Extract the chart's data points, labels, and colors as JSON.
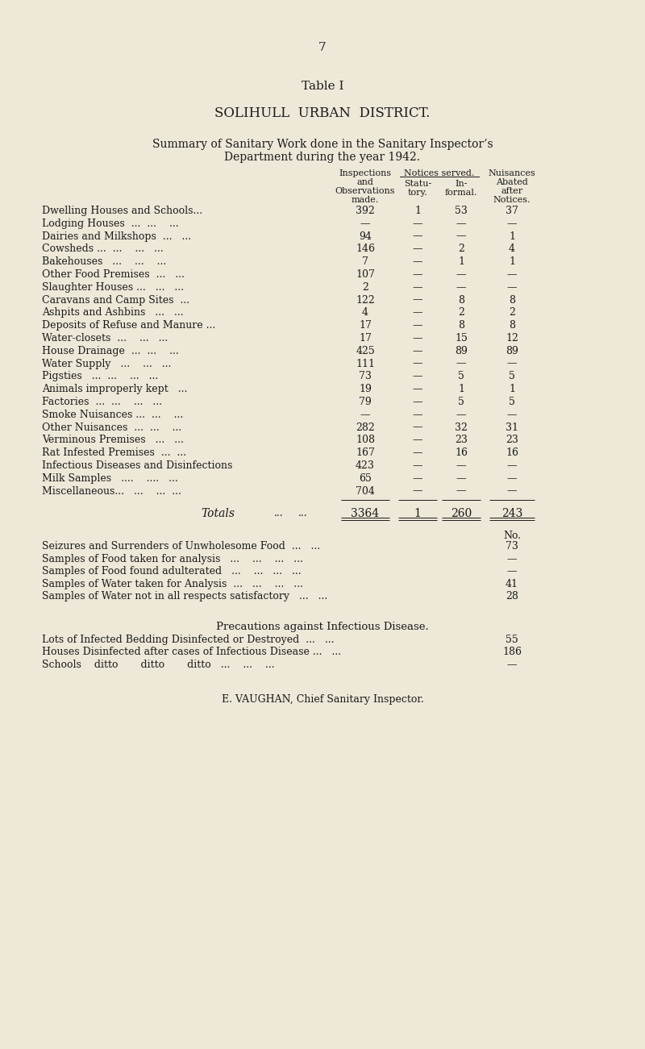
{
  "bg_color": "#ede8d8",
  "text_color": "#1a1a1a",
  "page_number": "7",
  "title1": "Table I",
  "title2": "SOLIHULL  URBAN  DISTRICT.",
  "title3": "Summary of Sanitary Work done in the Sanitary Inspector’s",
  "title4": "Department during the year 1942.",
  "rows": [
    {
      "label": "Dwelling Houses and Schools",
      "ldots": "...",
      "insp": "392",
      "stat": "1",
      "inf": "53",
      "nuis": "37"
    },
    {
      "label": "Lodging Houses  ...",
      "ldots": "  ...    ...",
      "insp": "—",
      "stat": "—",
      "inf": "—",
      "nuis": "—"
    },
    {
      "label": "Dairies and Milkshops",
      "ldots": "  ...   ...",
      "insp": "94",
      "stat": "—",
      "inf": "—",
      "nuis": "1"
    },
    {
      "label": "Cowsheds ...",
      "ldots": "  ...    ...   ...",
      "insp": "146",
      "stat": "—",
      "inf": "2",
      "nuis": "4"
    },
    {
      "label": "Bakehouses",
      "ldots": "   ...    ...    ...",
      "insp": "7",
      "stat": "—",
      "inf": "1",
      "nuis": "1"
    },
    {
      "label": "Other Food Premises",
      "ldots": "  ...   ...",
      "insp": "107",
      "stat": "—",
      "inf": "—",
      "nuis": "—"
    },
    {
      "label": "Slaughter Houses ...",
      "ldots": "   ...   ...",
      "insp": "2",
      "stat": "—",
      "inf": "—",
      "nuis": "—"
    },
    {
      "label": "Caravans and Camp Sites",
      "ldots": "  ...",
      "insp": "122",
      "stat": "—",
      "inf": "8",
      "nuis": "8"
    },
    {
      "label": "Ashpits and Ashbins",
      "ldots": "   ...   ...",
      "insp": "4",
      "stat": "—",
      "inf": "2",
      "nuis": "2"
    },
    {
      "label": "Deposits of Refuse and Manure ...",
      "ldots": "",
      "insp": "17",
      "stat": "—",
      "inf": "8",
      "nuis": "8"
    },
    {
      "label": "Water-closets",
      "ldots": "  ...    ...   ...",
      "insp": "17",
      "stat": "—",
      "inf": "15",
      "nuis": "12"
    },
    {
      "label": "House Drainage  ...",
      "ldots": "  ...    ...",
      "insp": "425",
      "stat": "—",
      "inf": "89",
      "nuis": "89"
    },
    {
      "label": "Water Supply",
      "ldots": "   ...    ...   ...",
      "insp": "111",
      "stat": "—",
      "inf": "—",
      "nuis": "—"
    },
    {
      "label": "Pigsties   ...",
      "ldots": "  ...    ...   ...",
      "insp": "73",
      "stat": "—",
      "inf": "5",
      "nuis": "5"
    },
    {
      "label": "Animals improperly kept",
      "ldots": "   ...",
      "insp": "19",
      "stat": "—",
      "inf": "1",
      "nuis": "1"
    },
    {
      "label": "Factories  ...",
      "ldots": "  ...    ...   ...",
      "insp": "79",
      "stat": "—",
      "inf": "5",
      "nuis": "5"
    },
    {
      "label": "Smoke Nuisances ...",
      "ldots": "  ...    ...",
      "insp": "—",
      "stat": "—",
      "inf": "—",
      "nuis": "—"
    },
    {
      "label": "Other Nuisances  ...",
      "ldots": "  ...    ...",
      "insp": "282",
      "stat": "—",
      "inf": "32",
      "nuis": "31"
    },
    {
      "label": "Verminous Premises",
      "ldots": "   ...   ...",
      "insp": "108",
      "stat": "—",
      "inf": "23",
      "nuis": "23"
    },
    {
      "label": "Rat Infested Premises  ...",
      "ldots": "  ...",
      "insp": "167",
      "stat": "—",
      "inf": "16",
      "nuis": "16"
    },
    {
      "label": "Infectious Diseases and Disinfections",
      "ldots": "",
      "insp": "423",
      "stat": "—",
      "inf": "—",
      "nuis": "—"
    },
    {
      "label": "Milk Samples",
      "ldots": "   ....    ....   ...",
      "insp": "65",
      "stat": "—",
      "inf": "—",
      "nuis": "—"
    },
    {
      "label": "Miscellaneous...",
      "ldots": "   ...    ...  ...",
      "insp": "704",
      "stat": "—",
      "inf": "—",
      "nuis": "—"
    }
  ],
  "totals": {
    "insp": "3364",
    "stat": "1",
    "inf": "260",
    "nuis": "243"
  },
  "section2_rows": [
    {
      "label": "Seizures and Surrenders of Unwholesome Food",
      "dots": "  ...   ...",
      "val": "73"
    },
    {
      "label": "Samples of Food taken for analysis",
      "dots": "   ...    ...    ...   ...",
      "val": "—"
    },
    {
      "label": "Samples of Food found adulterated",
      "dots": "   ...    ...   ...   ...",
      "val": "—"
    },
    {
      "label": "Samples of Water taken for Analysis  ...",
      "dots": "   ...    ...   ...",
      "val": "41"
    },
    {
      "label": "Samples of Water not in all respects satisfactory",
      "dots": "   ...   ...",
      "val": "28"
    }
  ],
  "section3_title": "Precautions against Infectious Disease.",
  "section3_rows": [
    {
      "label": "Lots of Infected Bedding Disinfected or Destroyed  ...",
      "dots": "   ...",
      "val": "55"
    },
    {
      "label": "Houses Disinfected after cases of Infectious Disease ...",
      "dots": "   ...",
      "val": "186"
    },
    {
      "label": "Schools    ditto       ditto       ditto",
      "dots": "   ...    ...    ...",
      "val": "—"
    }
  ],
  "signature": "E. VAUGHAN, Chief Sanitary Inspector."
}
